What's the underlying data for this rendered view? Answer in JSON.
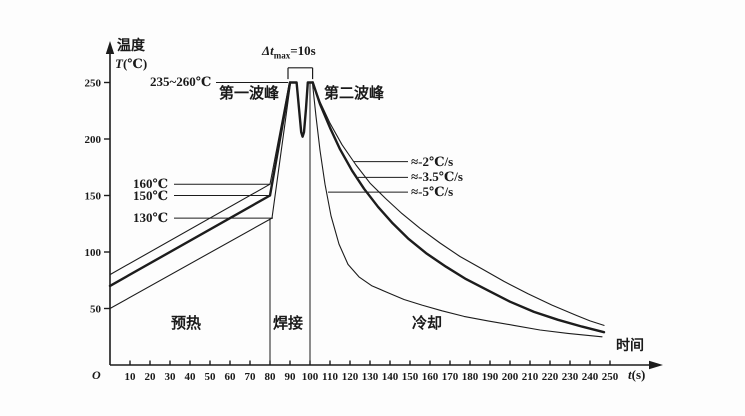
{
  "figure": {
    "y_axis": {
      "title": "温度",
      "symbol": "T",
      "unit": "(℃)",
      "ticks": [
        50,
        100,
        150,
        200,
        250
      ]
    },
    "x_axis": {
      "title": "时间",
      "symbol": "t",
      "unit": "(s)",
      "origin": "O",
      "ticks": [
        10,
        20,
        30,
        40,
        50,
        60,
        70,
        80,
        90,
        100,
        110,
        120,
        130,
        140,
        150,
        160,
        170,
        180,
        190,
        200,
        210,
        220,
        230,
        240,
        250
      ]
    },
    "annotations": {
      "peak_range": "235~260℃",
      "first_peak": "第一波峰",
      "second_peak": "第二波峰",
      "dt_max": {
        "p1": "Δt",
        "p2": "max",
        "p3": "=10s"
      },
      "preheat_temps": [
        "160℃",
        "150℃",
        "130℃"
      ],
      "cooling_rates": [
        "≈-2℃/s",
        "≈-3.5℃/s",
        "≈-5℃/s"
      ],
      "zones": [
        "预热",
        "焊接",
        "冷却"
      ]
    },
    "line_color": "#1c1c1c"
  },
  "chart_data": {
    "type": "line",
    "title": "",
    "xlabel": "时间 t(s)",
    "ylabel": "温度 T(℃)",
    "xlim": [
      0,
      276
    ],
    "ylim": [
      0,
      285
    ],
    "x_ticks": [
      10,
      20,
      30,
      40,
      50,
      60,
      70,
      80,
      90,
      100,
      110,
      120,
      130,
      140,
      150,
      160,
      170,
      180,
      190,
      200,
      210,
      220,
      230,
      240,
      250
    ],
    "y_ticks": [
      50,
      100,
      150,
      200,
      250
    ],
    "grid": false,
    "series": [
      {
        "name": "preheat-upper (0→80s, 80→160℃, ~1℃/s)",
        "style": "thin",
        "points": [
          [
            0,
            80
          ],
          [
            80,
            160
          ],
          [
            89.7,
            250
          ]
        ]
      },
      {
        "name": "preheat-main (0→80s, 70→150℃, ~1℃/s)",
        "style": "thick",
        "points": [
          [
            0,
            70
          ],
          [
            80,
            150
          ],
          [
            90,
            250
          ]
        ]
      },
      {
        "name": "preheat-lower (0→81s, 50→130℃, ~1℃/s)",
        "style": "thin",
        "points": [
          [
            0,
            50
          ],
          [
            81,
            130
          ],
          [
            90.3,
            250
          ]
        ]
      },
      {
        "name": "solder-peaks 第一波峰/第二波峰 235~260℃, dip ≈200℃",
        "style": "thick",
        "points": [
          [
            90,
            250
          ],
          [
            93.3,
            250
          ],
          [
            94.5,
            227
          ],
          [
            95.6,
            206
          ],
          [
            96.3,
            202
          ],
          [
            97,
            206
          ],
          [
            98,
            227
          ],
          [
            98.9,
            250
          ],
          [
            101.4,
            250
          ]
        ]
      },
      {
        "name": "cooling ≈-2℃/s",
        "style": "thin",
        "points": [
          [
            101.4,
            250
          ],
          [
            105,
            233
          ],
          [
            110,
            214
          ],
          [
            116,
            195
          ],
          [
            123,
            177
          ],
          [
            130,
            161
          ],
          [
            138,
            147
          ],
          [
            146,
            134
          ],
          [
            155,
            121
          ],
          [
            165,
            108
          ],
          [
            175,
            96
          ],
          [
            186,
            85
          ],
          [
            197,
            74
          ],
          [
            209,
            63
          ],
          [
            221,
            53
          ],
          [
            233,
            44
          ],
          [
            240,
            39
          ],
          [
            247,
            35
          ]
        ]
      },
      {
        "name": "cooling ≈-3.5℃/s",
        "style": "thick",
        "points": [
          [
            101.4,
            250
          ],
          [
            105,
            231
          ],
          [
            110,
            210
          ],
          [
            115,
            191
          ],
          [
            121,
            172
          ],
          [
            127,
            156
          ],
          [
            134,
            140
          ],
          [
            141,
            126
          ],
          [
            149,
            112
          ],
          [
            158,
            99
          ],
          [
            168,
            87
          ],
          [
            178,
            76
          ],
          [
            189,
            66
          ],
          [
            200,
            56
          ],
          [
            212,
            47
          ],
          [
            224,
            40
          ],
          [
            236,
            34
          ],
          [
            247,
            29
          ]
        ]
      },
      {
        "name": "cooling ≈-5℃/s",
        "style": "thin",
        "points": [
          [
            101.2,
            250
          ],
          [
            103,
            220
          ],
          [
            105,
            190
          ],
          [
            107.5,
            160
          ],
          [
            110.5,
            132
          ],
          [
            114.5,
            107
          ],
          [
            119,
            89
          ],
          [
            124.5,
            78
          ],
          [
            131,
            70
          ],
          [
            139,
            64
          ],
          [
            147,
            58
          ],
          [
            156,
            53
          ],
          [
            166,
            48
          ],
          [
            177,
            43
          ],
          [
            189,
            39
          ],
          [
            202,
            35
          ],
          [
            215,
            31
          ],
          [
            229,
            28
          ],
          [
            246,
            25
          ]
        ]
      }
    ],
    "zone_boundaries": [
      {
        "t": 80,
        "T_top": 130
      },
      {
        "t": 100,
        "T_top": 250
      }
    ],
    "leader_lines": [
      {
        "label": "235~260℃",
        "T": 250,
        "t1": 53,
        "t2": 89
      },
      {
        "label": "160℃",
        "T": 160,
        "t1": 32,
        "t2": 80
      },
      {
        "label": "150℃",
        "T": 150,
        "t1": 32,
        "t2": 80
      },
      {
        "label": "130℃",
        "T": 130,
        "t1": 32,
        "t2": 81.5
      },
      {
        "label": "≈-2℃/s",
        "T": 180,
        "t1": 122,
        "t2": 149
      },
      {
        "label": "≈-3.5℃/s",
        "T": 166,
        "t1": 124,
        "t2": 149
      },
      {
        "label": "≈-5℃/s",
        "T": 153,
        "t1": 109,
        "t2": 149
      }
    ],
    "dt_bracket": {
      "t1": 89,
      "t2": 101.3,
      "T_bar": 263,
      "T_tick_end": 253
    }
  }
}
